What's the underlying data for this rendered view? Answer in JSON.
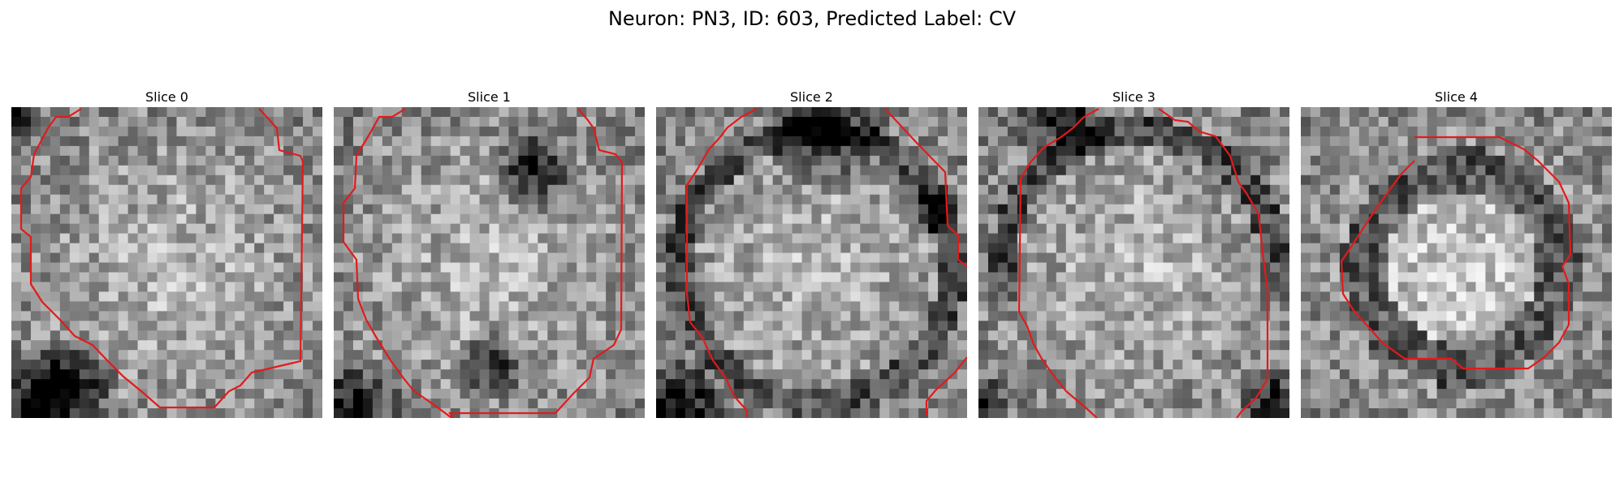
{
  "figure": {
    "title": "Neuron: PN3, ID: 603, Predicted Label: CV"
  },
  "slices": [
    {
      "label": "Slice 0",
      "contour_color": "#e31a1c"
    },
    {
      "label": "Slice 1",
      "contour_color": "#e31a1c"
    },
    {
      "label": "Slice 2",
      "contour_color": "#e31a1c"
    },
    {
      "label": "Slice 3",
      "contour_color": "#e31a1c"
    },
    {
      "label": "Slice 4",
      "contour_color": "#e31a1c"
    }
  ]
}
